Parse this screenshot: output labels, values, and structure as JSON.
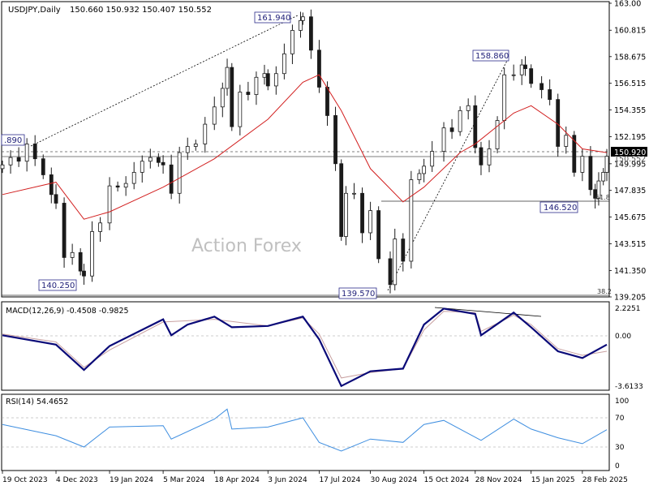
{
  "header": {
    "symbol": "USDJPY,Daily",
    "ohlc": "150.660 150.932 150.407 150.552"
  },
  "watermark": "Action Forex",
  "colors": {
    "candle": "#1a1a1a",
    "ma": "#d22020",
    "macd": "#0a0a78",
    "signal": "#c8a0a0",
    "rsi": "#3e8ee0",
    "label_border": "#2b2b8a",
    "label_text": "#22227a",
    "grid": "#999999"
  },
  "chart_data": [
    {
      "type": "candlestick",
      "title": "USDJPY,Daily",
      "ylim": [
        139.205,
        163.0
      ],
      "y_ticks": [
        "163.00",
        "160.815",
        "158.675",
        "156.515",
        "154.355",
        "152.195",
        "149.995",
        "147.835",
        "145.675",
        "143.515",
        "141.350",
        "139.205"
      ],
      "x_ticks": [
        "19 Oct 2023",
        "4 Dec 2023",
        "19 Jan 2024",
        "5 Mar 2024",
        "18 Apr 2024",
        "3 Jun 2024",
        "17 Jul 2024",
        "30 Aug 2024",
        "15 Oct 2024",
        "28 Nov 2024",
        "15 Jan 2025",
        "28 Feb 2025"
      ],
      "series": [
        {
          "name": "Close",
          "points": [
            [
              "19 Oct 2023",
              149.9
            ],
            [
              "26 Oct 2023",
              150.5
            ],
            [
              "2 Nov 2023",
              150.2
            ],
            [
              "9 Nov 2023",
              151.6
            ],
            [
              "16 Nov 2023",
              150.4
            ],
            [
              "23 Nov 2023",
              149.1
            ],
            [
              "30 Nov 2023",
              147.5
            ],
            [
              "4 Dec 2023",
              146.8
            ],
            [
              "11 Dec 2023",
              142.4
            ],
            [
              "18 Dec 2023",
              142.8
            ],
            [
              "25 Dec 2023",
              141.3
            ],
            [
              "28 Dec 2023",
              140.9
            ],
            [
              "4 Jan 2024",
              144.5
            ],
            [
              "11 Jan 2024",
              145.2
            ],
            [
              "19 Jan 2024",
              148.2
            ],
            [
              "26 Jan 2024",
              148.1
            ],
            [
              "2 Feb 2024",
              148.4
            ],
            [
              "9 Feb 2024",
              149.3
            ],
            [
              "16 Feb 2024",
              150.2
            ],
            [
              "23 Feb 2024",
              150.5
            ],
            [
              "1 Mar 2024",
              150.1
            ],
            [
              "5 Mar 2024",
              149.9
            ],
            [
              "12 Mar 2024",
              147.6
            ],
            [
              "19 Mar 2024",
              150.9
            ],
            [
              "26 Mar 2024",
              151.4
            ],
            [
              "2 Apr 2024",
              151.6
            ],
            [
              "10 Apr 2024",
              153.2
            ],
            [
              "18 Apr 2024",
              154.6
            ],
            [
              "25 Apr 2024",
              156.1
            ],
            [
              "29 Apr 2024",
              157.8
            ],
            [
              "3 May 2024",
              153.0
            ],
            [
              "10 May 2024",
              155.8
            ],
            [
              "17 May 2024",
              155.6
            ],
            [
              "24 May 2024",
              157.0
            ],
            [
              "31 May 2024",
              157.3
            ],
            [
              "3 Jun 2024",
              156.3
            ],
            [
              "10 Jun 2024",
              157.3
            ],
            [
              "17 Jun 2024",
              158.9
            ],
            [
              "24 Jun 2024",
              160.8
            ],
            [
              "1 Jul 2024",
              161.6
            ],
            [
              "3 Jul 2024",
              161.9
            ],
            [
              "10 Jul 2024",
              159.2
            ],
            [
              "17 Jul 2024",
              156.2
            ],
            [
              "24 Jul 2024",
              153.9
            ],
            [
              "31 Jul 2024",
              150.0
            ],
            [
              "5 Aug 2024",
              144.1
            ],
            [
              "9 Aug 2024",
              147.6
            ],
            [
              "16 Aug 2024",
              147.6
            ],
            [
              "23 Aug 2024",
              144.4
            ],
            [
              "30 Aug 2024",
              146.2
            ],
            [
              "6 Sep 2024",
              142.3
            ],
            [
              "16 Sep 2024",
              140.2
            ],
            [
              "20 Sep 2024",
              143.9
            ],
            [
              "27 Sep 2024",
              142.1
            ],
            [
              "4 Oct 2024",
              148.7
            ],
            [
              "11 Oct 2024",
              149.2
            ],
            [
              "15 Oct 2024",
              149.8
            ],
            [
              "22 Oct 2024",
              151.0
            ],
            [
              "1 Nov 2024",
              152.9
            ],
            [
              "8 Nov 2024",
              152.6
            ],
            [
              "15 Nov 2024",
              154.3
            ],
            [
              "22 Nov 2024",
              154.7
            ],
            [
              "28 Nov 2024",
              151.3
            ],
            [
              "3 Dec 2024",
              149.9
            ],
            [
              "10 Dec 2024",
              151.2
            ],
            [
              "17 Dec 2024",
              153.5
            ],
            [
              "23 Dec 2024",
              157.2
            ],
            [
              "31 Dec 2024",
              157.2
            ],
            [
              "7 Jan 2025",
              158.0
            ],
            [
              "10 Jan 2025",
              157.7
            ],
            [
              "15 Jan 2025",
              156.5
            ],
            [
              "24 Jan 2025",
              156.0
            ],
            [
              "31 Jan 2025",
              155.2
            ],
            [
              "7 Feb 2025",
              151.4
            ],
            [
              "14 Feb 2025",
              152.3
            ],
            [
              "21 Feb 2025",
              149.3
            ],
            [
              "28 Feb 2025",
              150.6
            ],
            [
              "7 Mar 2025",
              147.9
            ],
            [
              "11 Mar 2025",
              147.2
            ],
            [
              "14 Mar 2025",
              148.6
            ],
            [
              "18 Mar 2025",
              149.3
            ],
            [
              "21 Mar 2025",
              150.6
            ]
          ]
        },
        {
          "name": "MA",
          "points": [
            [
              "19 Oct 2023",
              147.5
            ],
            [
              "4 Dec 2023",
              148.5
            ],
            [
              "28 Dec 2023",
              145.5
            ],
            [
              "19 Jan 2024",
              146.1
            ],
            [
              "5 Mar 2024",
              148.1
            ],
            [
              "18 Apr 2024",
              150.4
            ],
            [
              "3 Jun 2024",
              153.6
            ],
            [
              "3 Jul 2024",
              156.6
            ],
            [
              "17 Jul 2024",
              157.2
            ],
            [
              "5 Aug 2024",
              154.3
            ],
            [
              "30 Aug 2024",
              149.6
            ],
            [
              "27 Sep 2024",
              146.9
            ],
            [
              "15 Oct 2024",
              148.1
            ],
            [
              "15 Nov 2024",
              150.9
            ],
            [
              "28 Nov 2024",
              151.6
            ],
            [
              "31 Dec 2024",
              154.1
            ],
            [
              "15 Jan 2025",
              154.7
            ],
            [
              "7 Feb 2025",
              153.2
            ],
            [
              "28 Feb 2025",
              151.2
            ],
            [
              "21 Mar 2025",
              150.9
            ]
          ]
        }
      ],
      "annotations": {
        "price_labels": [
          "161.940",
          "158.860",
          "146.520",
          "140.250",
          "139.570",
          ".890"
        ],
        "current_price": "150.920",
        "last_price": "150.552",
        "fib_levels": [
          "61.8",
          "38.2"
        ]
      }
    },
    {
      "type": "line",
      "title": "MACD(12,26,9) -0.4508 -0.9825",
      "y_ticks": [
        "2.2251",
        "0.00",
        "-3.6133"
      ],
      "ylim": [
        -3.6133,
        2.2251
      ],
      "series": [
        {
          "name": "MACD",
          "points": [
            [
              "19 Oct 2023",
              0.2
            ],
            [
              "4 Dec 2023",
              -0.5
            ],
            [
              "28 Dec 2023",
              -2.4
            ],
            [
              "19 Jan 2024",
              -0.6
            ],
            [
              "5 Mar 2024",
              1.4
            ],
            [
              "12 Mar 2024",
              0.2
            ],
            [
              "26 Mar 2024",
              1.0
            ],
            [
              "18 Apr 2024",
              1.6
            ],
            [
              "3 May 2024",
              0.8
            ],
            [
              "3 Jun 2024",
              0.9
            ],
            [
              "3 Jul 2024",
              1.6
            ],
            [
              "17 Jul 2024",
              -0.1
            ],
            [
              "5 Aug 2024",
              -3.6
            ],
            [
              "30 Aug 2024",
              -2.5
            ],
            [
              "27 Sep 2024",
              -2.3
            ],
            [
              "15 Oct 2024",
              1.0
            ],
            [
              "1 Nov 2024",
              2.2
            ],
            [
              "28 Nov 2024",
              1.8
            ],
            [
              "3 Dec 2024",
              0.2
            ],
            [
              "31 Dec 2024",
              1.9
            ],
            [
              "15 Jan 2025",
              0.8
            ],
            [
              "7 Feb 2025",
              -1.0
            ],
            [
              "28 Feb 2025",
              -1.5
            ],
            [
              "21 Mar 2025",
              -0.5
            ]
          ]
        },
        {
          "name": "Signal",
          "points": [
            [
              "19 Oct 2023",
              0.3
            ],
            [
              "4 Dec 2023",
              -0.3
            ],
            [
              "28 Dec 2023",
              -2.2
            ],
            [
              "19 Jan 2024",
              -0.9
            ],
            [
              "5 Mar 2024",
              1.2
            ],
            [
              "18 Apr 2024",
              1.4
            ],
            [
              "3 Jun 2024",
              0.9
            ],
            [
              "3 Jul 2024",
              1.5
            ],
            [
              "17 Jul 2024",
              0.3
            ],
            [
              "5 Aug 2024",
              -3.0
            ],
            [
              "30 Aug 2024",
              -2.6
            ],
            [
              "27 Sep 2024",
              -2.3
            ],
            [
              "15 Oct 2024",
              0.6
            ],
            [
              "1 Nov 2024",
              2.0
            ],
            [
              "28 Nov 2024",
              1.9
            ],
            [
              "3 Dec 2024",
              0.5
            ],
            [
              "31 Dec 2024",
              1.7
            ],
            [
              "15 Jan 2025",
              1.0
            ],
            [
              "7 Feb 2025",
              -0.8
            ],
            [
              "28 Feb 2025",
              -1.3
            ],
            [
              "21 Mar 2025",
              -1.0
            ]
          ]
        }
      ]
    },
    {
      "type": "line",
      "title": "RSI(14) 54.4652",
      "y_ticks": [
        "100",
        "70",
        "30",
        "0"
      ],
      "ylim": [
        0,
        100
      ],
      "series": [
        {
          "name": "RSI",
          "points": [
            [
              "19 Oct 2023",
              62
            ],
            [
              "4 Dec 2023",
              45
            ],
            [
              "28 Dec 2023",
              28
            ],
            [
              "19 Jan 2024",
              58
            ],
            [
              "5 Mar 2024",
              60
            ],
            [
              "12 Mar 2024",
              40
            ],
            [
              "18 Apr 2024",
              70
            ],
            [
              "29 Apr 2024",
              85
            ],
            [
              "3 May 2024",
              55
            ],
            [
              "3 Jun 2024",
              58
            ],
            [
              "3 Jul 2024",
              72
            ],
            [
              "17 Jul 2024",
              35
            ],
            [
              "5 Aug 2024",
              22
            ],
            [
              "30 Aug 2024",
              40
            ],
            [
              "27 Sep 2024",
              35
            ],
            [
              "15 Oct 2024",
              62
            ],
            [
              "1 Nov 2024",
              68
            ],
            [
              "3 Dec 2024",
              38
            ],
            [
              "31 Dec 2024",
              70
            ],
            [
              "15 Jan 2025",
              55
            ],
            [
              "7 Feb 2025",
              42
            ],
            [
              "28 Feb 2025",
              33
            ],
            [
              "21 Mar 2025",
              54
            ]
          ]
        }
      ]
    }
  ]
}
